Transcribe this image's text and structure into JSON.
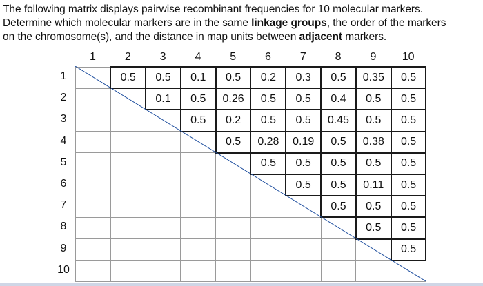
{
  "question": {
    "line1": "The following matrix displays pairwise recombinant frequencies for 10 molecular markers.",
    "line2_pre": "Determine which molecular markers are in the same ",
    "line2_bold": "linkage groups",
    "line2_post": ", the order of the markers",
    "line3_pre": "on the chromosome(s), and the distance in map units between ",
    "line3_bold": "adjacent",
    "line3_post": " markers."
  },
  "matrix": {
    "markers": [
      "1",
      "2",
      "3",
      "4",
      "5",
      "6",
      "7",
      "8",
      "9",
      "10"
    ],
    "rows": [
      [
        "",
        "0.5",
        "0.5",
        "0.1",
        "0.5",
        "0.2",
        "0.3",
        "0.5",
        "0.35",
        "0.5"
      ],
      [
        "",
        "",
        "0.1",
        "0.5",
        "0.26",
        "0.5",
        "0.5",
        "0.4",
        "0.5",
        "0.5"
      ],
      [
        "",
        "",
        "",
        "0.5",
        "0.2",
        "0.5",
        "0.5",
        "0.45",
        "0.5",
        "0.5"
      ],
      [
        "",
        "",
        "",
        "",
        "0.5",
        "0.28",
        "0.19",
        "0.5",
        "0.38",
        "0.5"
      ],
      [
        "",
        "",
        "",
        "",
        "",
        "0.5",
        "0.5",
        "0.5",
        "0.5",
        "0.5"
      ],
      [
        "",
        "",
        "",
        "",
        "",
        "",
        "0.5",
        "0.5",
        "0.11",
        "0.5"
      ],
      [
        "",
        "",
        "",
        "",
        "",
        "",
        "",
        "0.5",
        "0.5",
        "0.5"
      ],
      [
        "",
        "",
        "",
        "",
        "",
        "",
        "",
        "",
        "0.5",
        "0.5"
      ],
      [
        "",
        "",
        "",
        "",
        "",
        "",
        "",
        "",
        "",
        "0.5"
      ],
      [
        "",
        "",
        "",
        "",
        "",
        "",
        "",
        "",
        "",
        ""
      ]
    ]
  }
}
